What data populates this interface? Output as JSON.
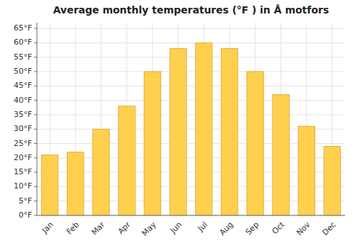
{
  "chart_data": {
    "type": "bar",
    "title": "Average monthly temperatures (°F ) in Å motfors",
    "categories": [
      "Jan",
      "Feb",
      "Mar",
      "Apr",
      "May",
      "Jun",
      "Jul",
      "Aug",
      "Sep",
      "Oct",
      "Nov",
      "Dec"
    ],
    "values": [
      21,
      22,
      30,
      38,
      50,
      58,
      60,
      58,
      50,
      42,
      31,
      24
    ],
    "color": "#FFD04E",
    "ylim": [
      0,
      67
    ],
    "yticks": [
      {
        "value": 0,
        "label": "0°F"
      },
      {
        "value": 5,
        "label": "5°F"
      },
      {
        "value": 10,
        "label": "10°F"
      },
      {
        "value": 15,
        "label": "15°F"
      },
      {
        "value": 20,
        "label": "20°F"
      },
      {
        "value": 25,
        "label": "25°F"
      },
      {
        "value": 30,
        "label": "30°F"
      },
      {
        "value": 35,
        "label": "35°F"
      },
      {
        "value": 40,
        "label": "40°F"
      },
      {
        "value": 45,
        "label": "45°F"
      },
      {
        "value": 50,
        "label": "50°F"
      },
      {
        "value": 55,
        "label": "55°F"
      },
      {
        "value": 60,
        "label": "60°F"
      },
      {
        "value": 65,
        "label": "65°F"
      }
    ],
    "grid": true
  }
}
